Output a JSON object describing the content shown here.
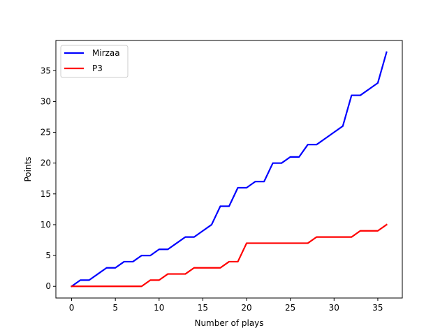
{
  "chart_data": {
    "type": "line",
    "xlabel": "Number of plays",
    "ylabel": "Points",
    "xlim": [
      -1.8,
      37.8
    ],
    "ylim": [
      -1.9,
      39.9
    ],
    "xticks": [
      0,
      5,
      10,
      15,
      20,
      25,
      30,
      35
    ],
    "yticks": [
      0,
      5,
      10,
      15,
      20,
      25,
      30,
      35
    ],
    "grid": false,
    "legend_position": "top-left",
    "x": [
      0,
      1,
      2,
      3,
      4,
      5,
      6,
      7,
      8,
      9,
      10,
      11,
      12,
      13,
      14,
      15,
      16,
      17,
      18,
      19,
      20,
      21,
      22,
      23,
      24,
      25,
      26,
      27,
      28,
      29,
      30,
      31,
      32,
      33,
      34,
      35,
      36
    ],
    "series": [
      {
        "name": "Mirzaa",
        "color": "#0000ff",
        "values": [
          0,
          1,
          1,
          2,
          3,
          3,
          4,
          4,
          5,
          5,
          6,
          6,
          7,
          8,
          8,
          9,
          10,
          13,
          13,
          16,
          16,
          17,
          17,
          20,
          20,
          21,
          21,
          23,
          23,
          24,
          25,
          26,
          31,
          31,
          32,
          33,
          38
        ]
      },
      {
        "name": "P3",
        "color": "#ff0000",
        "values": [
          0,
          0,
          0,
          0,
          0,
          0,
          0,
          0,
          0,
          1,
          1,
          2,
          2,
          2,
          3,
          3,
          3,
          3,
          4,
          4,
          7,
          7,
          7,
          7,
          7,
          7,
          7,
          7,
          8,
          8,
          8,
          8,
          8,
          9,
          9,
          9,
          10
        ]
      }
    ]
  }
}
